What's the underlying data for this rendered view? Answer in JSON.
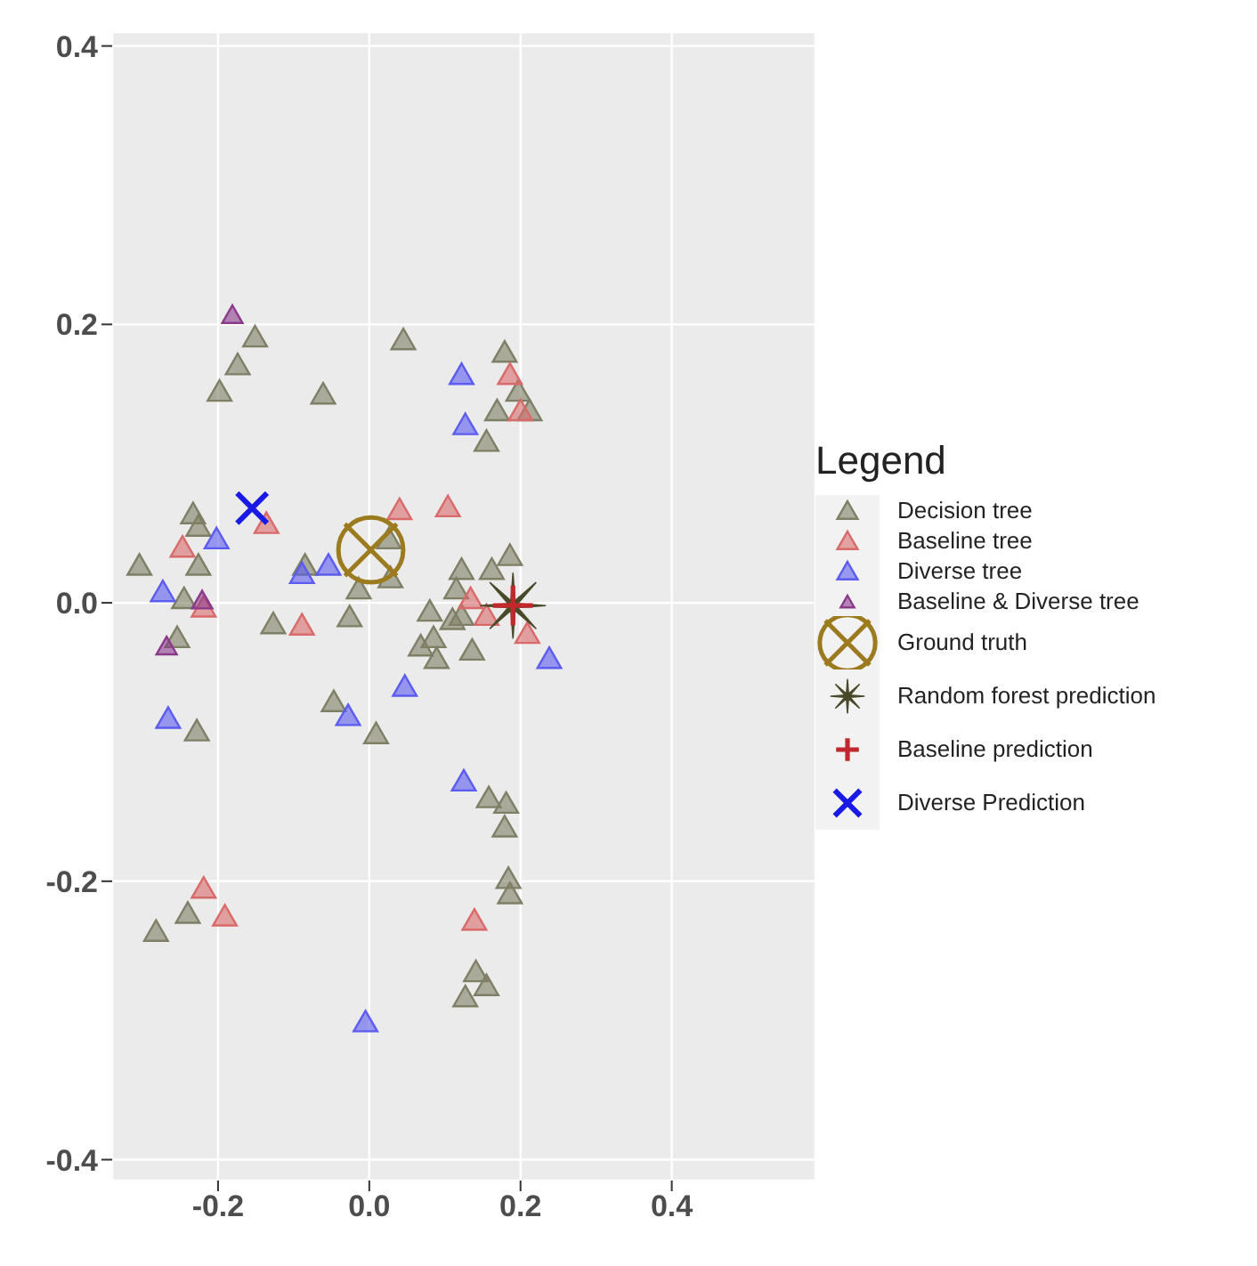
{
  "chart_data": {
    "type": "scatter",
    "legend_title": "Legend",
    "legend": "right",
    "grid": true,
    "xlim": [
      -0.34,
      0.59
    ],
    "ylim": [
      -0.415,
      0.41
    ],
    "xticks": [
      -0.2,
      {
        "value": 0,
        "label": "0.0"
      },
      0.2,
      0.4
    ],
    "yticks": [
      -0.4,
      -0.2,
      {
        "value": 0,
        "label": "0.0"
      },
      0.2,
      0.4
    ],
    "series": [
      {
        "name": "Decision tree",
        "color": "#7f7f66",
        "marker": "triangle",
        "x": [
          -0.151,
          -0.174,
          -0.198,
          -0.061,
          0.045,
          0.179,
          0.197,
          0.169,
          0.212,
          0.155,
          -0.233,
          -0.226,
          -0.304,
          -0.226,
          -0.245,
          -0.085,
          -0.014,
          0.028,
          0.026,
          -0.127,
          -0.026,
          -0.254,
          0.068,
          0.085,
          0.089,
          0.136,
          -0.228,
          -0.047,
          0.009,
          0.158,
          0.181,
          0.179,
          0.184,
          0.186,
          -0.24,
          -0.282,
          0.141,
          0.155,
          0.127,
          0.122,
          0.162,
          0.186,
          0.115,
          0.08,
          0.11,
          0.122
        ],
        "values": [
          0.19,
          0.17,
          0.151,
          0.149,
          0.188,
          0.179,
          0.151,
          0.137,
          0.137,
          0.115,
          0.063,
          0.054,
          0.026,
          0.026,
          0.002,
          0.026,
          0.009,
          0.017,
          0.045,
          -0.016,
          -0.011,
          -0.026,
          -0.032,
          -0.026,
          -0.041,
          -0.035,
          -0.093,
          -0.072,
          -0.095,
          -0.141,
          -0.145,
          -0.162,
          -0.199,
          -0.21,
          -0.224,
          -0.237,
          -0.266,
          -0.276,
          -0.284,
          0.023,
          0.023,
          0.033,
          0.009,
          -0.007,
          -0.013,
          -0.01
        ]
      },
      {
        "name": "Baseline tree",
        "color": "#d96a6a",
        "marker": "triangle",
        "x": [
          0.186,
          0.2,
          0.04,
          0.104,
          -0.247,
          -0.219,
          -0.089,
          0.209,
          -0.219,
          -0.191,
          0.139,
          0.134,
          0.155,
          -0.136
        ],
        "values": [
          0.163,
          0.137,
          0.066,
          0.068,
          0.039,
          -0.004,
          -0.017,
          -0.023,
          -0.206,
          -0.226,
          -0.229,
          0.002,
          -0.01,
          0.056
        ]
      },
      {
        "name": "Diverse tree",
        "color": "#5c5cf0",
        "marker": "triangle",
        "x": [
          0.122,
          0.127,
          -0.202,
          -0.273,
          -0.089,
          -0.054,
          0.238,
          0.047,
          -0.266,
          -0.028,
          0.125,
          -0.005
        ],
        "values": [
          0.163,
          0.127,
          0.045,
          0.007,
          0.02,
          0.026,
          -0.041,
          -0.061,
          -0.084,
          -0.082,
          -0.129,
          -0.302
        ]
      },
      {
        "name": "Baseline & Diverse tree",
        "color": "#8b3a8b",
        "marker": "triangle",
        "x": [
          -0.181,
          -0.221,
          -0.268
        ],
        "values": [
          0.206,
          0.001,
          -0.032
        ]
      },
      {
        "name": "Ground truth",
        "color": "#9c7a1e",
        "marker": "circle",
        "x": [
          0.002
        ],
        "values": [
          0.038
        ]
      },
      {
        "name": "Random forest prediction",
        "color": "#4a4a2a",
        "marker": "star",
        "x": [
          0.19
        ],
        "values": [
          -0.002
        ]
      },
      {
        "name": "Baseline prediction",
        "color": "#c0282d",
        "marker": "cross",
        "x": [
          0.19
        ],
        "values": [
          -0.002
        ]
      },
      {
        "name": "Diverse Prediction",
        "color": "#1a1ae6",
        "marker": "x",
        "x": [
          -0.155
        ],
        "values": [
          0.068
        ]
      }
    ]
  }
}
